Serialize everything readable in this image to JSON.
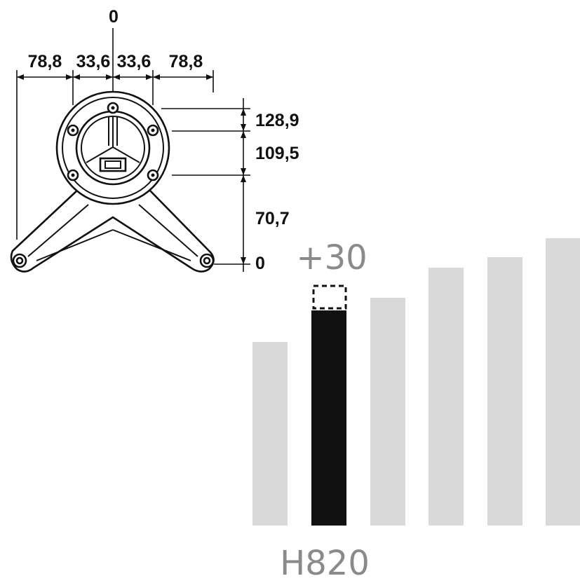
{
  "drawing": {
    "top_zero": "0",
    "horizontal_dims": [
      "78,8",
      "33,6",
      "33,6",
      "78,8"
    ],
    "vertical_dims": [
      "128,9",
      "109,5",
      "70,7"
    ],
    "bottom_zero": "0"
  },
  "height_options": {
    "increment_label": "+30",
    "height_label": "H820",
    "bar_color_inactive": "#d9d9d9",
    "bar_color_active": "#111111",
    "selected_index": 1,
    "bar_count": 6
  }
}
